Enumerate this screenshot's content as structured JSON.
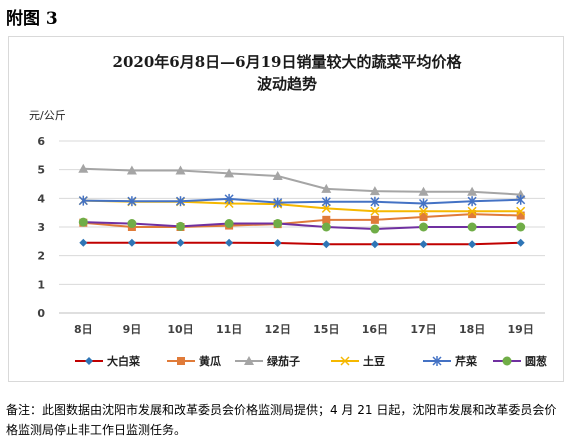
{
  "figure_label": "附图 3",
  "footnote": "备注：此图数据由沈阳市发展和改革委员会价格监测局提供；4 月 21 日起，沈阳市发展和改革委员会价格监测局停止非工作日监测任务。",
  "chart_data": {
    "type": "line",
    "title_line1": "2020年6月8日—6月19日销量较大的蔬菜平均价格",
    "title_line2": "波动趋势",
    "ylabel": "元/公斤",
    "xlabel": "",
    "ylim": [
      0,
      6
    ],
    "yticks": [
      "0",
      "1",
      "2",
      "3",
      "4",
      "5",
      "6"
    ],
    "grid": true,
    "legend_position": "bottom",
    "categories": [
      "8日",
      "9日",
      "10日",
      "11日",
      "12日",
      "15日",
      "16日",
      "17日",
      "18日",
      "19日"
    ],
    "series": [
      {
        "name": "大白菜",
        "color": "#c00000",
        "marker_color": "#2e75b6",
        "marker": "diamond",
        "values": [
          2.45,
          2.45,
          2.45,
          2.45,
          2.44,
          2.4,
          2.4,
          2.4,
          2.4,
          2.45
        ]
      },
      {
        "name": "黄瓜",
        "color": "#e07b39",
        "marker_color": "#e07b39",
        "marker": "square",
        "values": [
          3.15,
          3.0,
          3.0,
          3.05,
          3.1,
          3.25,
          3.25,
          3.35,
          3.45,
          3.4
        ]
      },
      {
        "name": "绿茄子",
        "color": "#a5a5a5",
        "marker_color": "#a5a5a5",
        "marker": "triangle",
        "values": [
          5.03,
          4.97,
          4.97,
          4.87,
          4.78,
          4.33,
          4.25,
          4.23,
          4.23,
          4.13
        ]
      },
      {
        "name": "土豆",
        "color": "#f5b800",
        "marker_color": "#f5b800",
        "marker": "x",
        "values": [
          3.92,
          3.88,
          3.88,
          3.82,
          3.8,
          3.65,
          3.55,
          3.55,
          3.55,
          3.55
        ]
      },
      {
        "name": "芹菜",
        "color": "#4472c4",
        "marker_color": "#4472c4",
        "marker": "star",
        "values": [
          3.92,
          3.9,
          3.9,
          3.98,
          3.85,
          3.88,
          3.88,
          3.82,
          3.9,
          3.95
        ]
      },
      {
        "name": "圆葱",
        "color": "#7030a0",
        "marker_color": "#70ad47",
        "marker": "circle",
        "values": [
          3.17,
          3.12,
          3.02,
          3.12,
          3.12,
          3.0,
          2.93,
          3.0,
          3.0,
          3.0
        ]
      }
    ]
  }
}
